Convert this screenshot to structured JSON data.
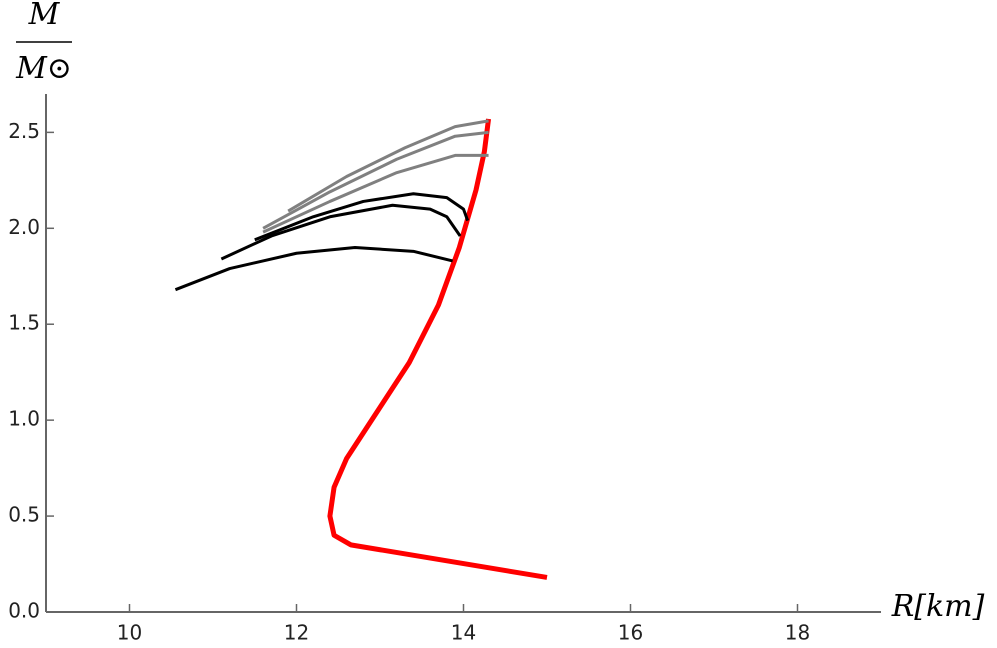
{
  "chart_data": {
    "type": "line",
    "xlabel": "R[km]",
    "ylabel": {
      "numerator": "M",
      "denominator": "M⊙"
    },
    "xlim": [
      9,
      19
    ],
    "xticks": [
      10,
      12,
      14,
      16,
      18
    ],
    "ylim": [
      0,
      2.7
    ],
    "yticks": [
      {
        "value": 0,
        "label": "0.0"
      },
      0.5,
      {
        "value": 1,
        "label": "1.0"
      },
      1.5,
      {
        "value": 2,
        "label": "2.0"
      },
      2.5
    ],
    "series": [
      {
        "color": "#ff0000",
        "width": 5,
        "x": [
          15.0,
          12.65,
          12.45,
          12.4,
          12.45,
          12.6,
          12.9,
          13.35,
          13.7,
          13.95,
          14.15,
          14.25,
          14.3
        ],
        "values": [
          0.18,
          0.35,
          0.4,
          0.5,
          0.65,
          0.8,
          1.0,
          1.3,
          1.6,
          1.9,
          2.2,
          2.4,
          2.57
        ]
      },
      {
        "color": "#000000",
        "width": 3,
        "x": [
          10.55,
          11.2,
          12.0,
          12.7,
          13.4,
          13.87
        ],
        "values": [
          1.68,
          1.79,
          1.87,
          1.9,
          1.88,
          1.83
        ]
      },
      {
        "color": "#000000",
        "width": 3,
        "x": [
          11.1,
          11.7,
          12.4,
          13.15,
          13.6,
          13.8,
          13.96
        ],
        "values": [
          1.84,
          1.96,
          2.06,
          2.12,
          2.1,
          2.06,
          1.96
        ]
      },
      {
        "color": "#000000",
        "width": 3,
        "x": [
          11.5,
          12.2,
          12.8,
          13.4,
          13.8,
          14.0,
          14.05
        ],
        "values": [
          1.94,
          2.06,
          2.14,
          2.18,
          2.16,
          2.1,
          2.04
        ]
      },
      {
        "color": "#808080",
        "width": 3,
        "x": [
          11.9,
          12.6,
          13.3,
          13.9,
          14.3
        ],
        "values": [
          2.09,
          2.27,
          2.42,
          2.53,
          2.56
        ]
      },
      {
        "color": "#808080",
        "width": 3,
        "x": [
          11.6,
          12.4,
          13.2,
          13.9,
          14.3
        ],
        "values": [
          2.0,
          2.19,
          2.36,
          2.48,
          2.5
        ]
      },
      {
        "color": "#808080",
        "width": 3,
        "x": [
          11.6,
          12.4,
          13.2,
          13.9,
          14.3
        ],
        "values": [
          1.98,
          2.14,
          2.29,
          2.38,
          2.38
        ]
      }
    ]
  }
}
